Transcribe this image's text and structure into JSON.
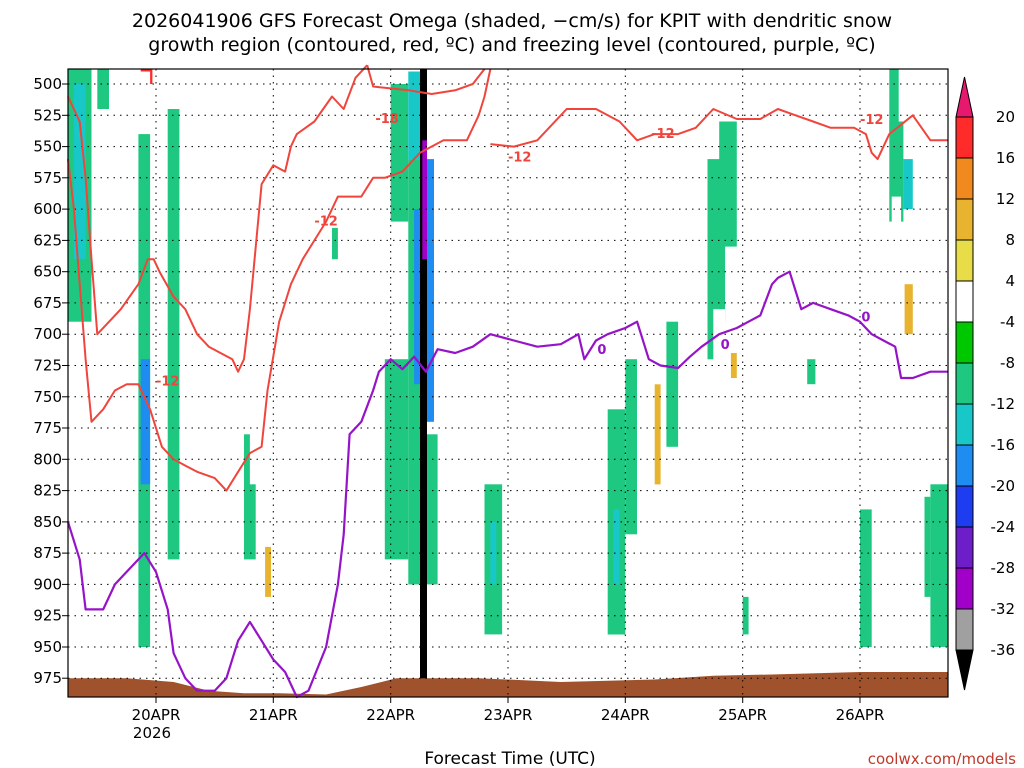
{
  "header": {
    "title_line1": "2026041906 GFS Forecast Omega (shaded, −cm/s) for KPIT with dendritic snow",
    "title_line2": "growth region (contoured, red, ºC) and freezing level (contoured, purple, ºC)"
  },
  "footer": {
    "xlabel": "Forecast Time (UTC)",
    "credit": "coolwx.com/models",
    "year_label": "2026"
  },
  "chart_data": {
    "type": "heatmap",
    "title": "2026041906 GFS Forecast Omega (shaded, −cm/s) for KPIT with dendritic snow growth region (contoured, red, ºC) and freezing level (contoured, purple, ºC)",
    "xlabel": "Forecast Time (UTC)",
    "ylabel": "",
    "x_range_days": [
      0,
      7.5
    ],
    "y_range_hpa": [
      488,
      990
    ],
    "x_ticks": [
      {
        "day": 0.75,
        "label": "20APR"
      },
      {
        "day": 1.75,
        "label": "21APR"
      },
      {
        "day": 2.75,
        "label": "22APR"
      },
      {
        "day": 3.75,
        "label": "23APR"
      },
      {
        "day": 4.75,
        "label": "24APR"
      },
      {
        "day": 5.75,
        "label": "25APR"
      },
      {
        "day": 6.75,
        "label": "26APR"
      }
    ],
    "y_ticks": [
      500,
      525,
      550,
      575,
      600,
      625,
      650,
      675,
      700,
      725,
      750,
      775,
      800,
      825,
      850,
      875,
      900,
      925,
      950,
      975
    ],
    "colorbar": {
      "levels": [
        "20",
        "16",
        "12",
        "8",
        "4",
        "-4",
        "-8",
        "-12",
        "-16",
        "-20",
        "-24",
        "-28",
        "-32",
        "-36"
      ],
      "colors": [
        "#ff2a2a",
        "#f0891e",
        "#e8b430",
        "#e8dc48",
        "#ffffff",
        "#00c800",
        "#1fc880",
        "#18c8c8",
        "#1e8cf0",
        "#1e3cf0",
        "#6e1ec8",
        "#a000c8",
        "#a0a0a0",
        "#000000"
      ],
      "top_arrow_color": "#e6196e",
      "bottom_arrow_color": "#000000"
    },
    "snow_growth_contour_color": "#f0453c",
    "freezing_level_color": "#9614c8",
    "ground_color": "#a0522d",
    "snow_growth_upper": [
      [
        0,
        510
      ],
      [
        0.1,
        530
      ],
      [
        0.15,
        575
      ],
      [
        0.2,
        640
      ],
      [
        0.25,
        700
      ],
      [
        0.35,
        690
      ],
      [
        0.45,
        680
      ],
      [
        0.6,
        660
      ],
      [
        0.68,
        640
      ],
      [
        0.73,
        640
      ],
      [
        0.78,
        650
      ],
      [
        0.9,
        670
      ],
      [
        1.0,
        680
      ],
      [
        1.1,
        700
      ],
      [
        1.2,
        710
      ],
      [
        1.3,
        715
      ],
      [
        1.4,
        720
      ],
      [
        1.45,
        730
      ],
      [
        1.5,
        720
      ],
      [
        1.55,
        680
      ],
      [
        1.65,
        580
      ],
      [
        1.75,
        565
      ],
      [
        1.85,
        570
      ],
      [
        1.9,
        550
      ],
      [
        1.95,
        540
      ],
      [
        2.1,
        530
      ],
      [
        2.25,
        510
      ],
      [
        2.35,
        520
      ],
      [
        2.45,
        495
      ],
      [
        2.55,
        485
      ]
    ],
    "snow_growth_lower": [
      [
        0,
        560
      ],
      [
        0.05,
        600
      ],
      [
        0.1,
        660
      ],
      [
        0.15,
        720
      ],
      [
        0.2,
        770
      ],
      [
        0.3,
        760
      ],
      [
        0.4,
        745
      ],
      [
        0.5,
        740
      ],
      [
        0.6,
        740
      ],
      [
        0.7,
        760
      ],
      [
        0.8,
        790
      ],
      [
        0.9,
        800
      ],
      [
        1.0,
        805
      ],
      [
        1.1,
        810
      ],
      [
        1.25,
        815
      ],
      [
        1.35,
        825
      ],
      [
        1.45,
        810
      ],
      [
        1.55,
        795
      ],
      [
        1.65,
        790
      ],
      [
        1.7,
        745
      ],
      [
        1.8,
        690
      ],
      [
        1.9,
        660
      ],
      [
        2.0,
        640
      ],
      [
        2.1,
        625
      ],
      [
        2.2,
        610
      ],
      [
        2.3,
        590
      ],
      [
        2.5,
        590
      ],
      [
        2.6,
        575
      ],
      [
        2.7,
        575
      ],
      [
        2.85,
        570
      ],
      [
        3.0,
        555
      ],
      [
        3.2,
        545
      ],
      [
        3.4,
        545
      ],
      [
        3.5,
        525
      ],
      [
        3.55,
        510
      ],
      [
        3.6,
        488
      ]
    ],
    "snow_growth_top": [
      [
        2.55,
        485
      ],
      [
        2.6,
        502
      ],
      [
        2.9,
        505
      ],
      [
        3.1,
        508
      ],
      [
        3.3,
        505
      ],
      [
        3.45,
        500
      ],
      [
        3.55,
        488
      ]
    ],
    "snow_growth_right": [
      [
        3.6,
        548
      ],
      [
        3.8,
        550
      ],
      [
        4.0,
        545
      ],
      [
        4.25,
        520
      ],
      [
        4.5,
        520
      ],
      [
        4.7,
        530
      ],
      [
        4.85,
        545
      ],
      [
        5.0,
        540
      ],
      [
        5.2,
        540
      ],
      [
        5.35,
        535
      ],
      [
        5.5,
        520
      ],
      [
        5.7,
        528
      ],
      [
        5.9,
        528
      ],
      [
        6.05,
        520
      ],
      [
        6.2,
        525
      ],
      [
        6.35,
        530
      ],
      [
        6.5,
        535
      ],
      [
        6.7,
        535
      ],
      [
        6.8,
        540
      ],
      [
        6.85,
        555
      ],
      [
        6.9,
        560
      ],
      [
        7.0,
        540
      ],
      [
        7.2,
        525
      ],
      [
        7.35,
        545
      ],
      [
        7.5,
        545
      ]
    ],
    "freezing_level": [
      [
        0,
        850
      ],
      [
        0.1,
        880
      ],
      [
        0.15,
        920
      ],
      [
        0.3,
        920
      ],
      [
        0.4,
        900
      ],
      [
        0.55,
        885
      ],
      [
        0.65,
        875
      ],
      [
        0.75,
        890
      ],
      [
        0.85,
        920
      ],
      [
        0.9,
        955
      ],
      [
        1.0,
        975
      ],
      [
        1.1,
        985
      ],
      [
        1.25,
        985
      ],
      [
        1.35,
        975
      ],
      [
        1.45,
        945
      ],
      [
        1.55,
        930
      ],
      [
        1.65,
        945
      ],
      [
        1.75,
        960
      ],
      [
        1.85,
        970
      ],
      [
        1.95,
        990
      ],
      [
        2.05,
        985
      ],
      [
        2.2,
        950
      ],
      [
        2.3,
        900
      ],
      [
        2.35,
        860
      ],
      [
        2.4,
        780
      ],
      [
        2.5,
        770
      ],
      [
        2.6,
        745
      ],
      [
        2.65,
        730
      ],
      [
        2.75,
        720
      ],
      [
        2.85,
        728
      ],
      [
        2.95,
        718
      ],
      [
        3.05,
        730
      ],
      [
        3.15,
        712
      ],
      [
        3.3,
        715
      ],
      [
        3.45,
        710
      ],
      [
        3.6,
        700
      ],
      [
        3.8,
        705
      ],
      [
        4.0,
        710
      ],
      [
        4.2,
        708
      ],
      [
        4.35,
        700
      ],
      [
        4.4,
        720
      ],
      [
        4.5,
        705
      ],
      [
        4.6,
        700
      ],
      [
        4.75,
        695
      ],
      [
        4.85,
        690
      ],
      [
        4.95,
        720
      ],
      [
        5.05,
        725
      ],
      [
        5.2,
        727
      ],
      [
        5.3,
        718
      ],
      [
        5.4,
        710
      ],
      [
        5.55,
        700
      ],
      [
        5.7,
        695
      ],
      [
        5.8,
        690
      ],
      [
        5.9,
        685
      ],
      [
        6.0,
        660
      ],
      [
        6.05,
        655
      ],
      [
        6.15,
        650
      ],
      [
        6.25,
        680
      ],
      [
        6.35,
        675
      ],
      [
        6.5,
        680
      ],
      [
        6.65,
        685
      ],
      [
        6.75,
        690
      ],
      [
        6.85,
        700
      ],
      [
        6.95,
        705
      ],
      [
        7.05,
        710
      ],
      [
        7.1,
        735
      ],
      [
        7.2,
        735
      ],
      [
        7.35,
        730
      ],
      [
        7.5,
        730
      ]
    ],
    "contour_labels": [
      {
        "day": 2.72,
        "hpa": 527,
        "text": "-18",
        "color": "#f0453c"
      },
      {
        "day": 3.85,
        "hpa": 558,
        "text": "-12",
        "color": "#f0453c"
      },
      {
        "day": 2.2,
        "hpa": 609,
        "text": "-12",
        "color": "#f0453c"
      },
      {
        "day": 0.85,
        "hpa": 737,
        "text": "-12",
        "color": "#f0453c"
      },
      {
        "day": 5.07,
        "hpa": 539,
        "text": "-12",
        "color": "#f0453c"
      },
      {
        "day": 6.85,
        "hpa": 528,
        "text": "-12",
        "color": "#f0453c"
      },
      {
        "day": 4.55,
        "hpa": 712,
        "text": "0",
        "color": "#9614c8"
      },
      {
        "day": 5.6,
        "hpa": 708,
        "text": "0",
        "color": "#9614c8"
      },
      {
        "day": 6.8,
        "hpa": 686,
        "text": "0",
        "color": "#9614c8"
      }
    ],
    "omega_cells": [
      {
        "d0": 0.0,
        "d1": 0.2,
        "p0": 488,
        "p1": 690,
        "v": -8
      },
      {
        "d0": 0.05,
        "d1": 0.15,
        "p0": 500,
        "p1": 640,
        "v": -12
      },
      {
        "d0": 0.25,
        "d1": 0.35,
        "p0": 488,
        "p1": 520,
        "v": -8
      },
      {
        "d0": 0.3,
        "d1": 0.4,
        "p0": 560,
        "p1": 700,
        "v": 4
      },
      {
        "d0": 0.45,
        "d1": 0.55,
        "p0": 488,
        "p1": 560,
        "v": 4
      },
      {
        "d0": 0.4,
        "d1": 0.55,
        "p0": 820,
        "p1": 880,
        "v": 4
      },
      {
        "d0": 0.62,
        "d1": 0.72,
        "p0": 488,
        "p1": 500,
        "v": 20
      },
      {
        "d0": 0.55,
        "d1": 0.7,
        "p0": 490,
        "p1": 620,
        "v": 4
      },
      {
        "d0": 0.6,
        "d1": 0.7,
        "p0": 540,
        "p1": 950,
        "v": -8
      },
      {
        "d0": 0.62,
        "d1": 0.7,
        "p0": 720,
        "p1": 820,
        "v": -16
      },
      {
        "d0": 0.72,
        "d1": 0.85,
        "p0": 540,
        "p1": 650,
        "v": 4
      },
      {
        "d0": 0.75,
        "d1": 0.85,
        "p0": 740,
        "p1": 800,
        "v": 4
      },
      {
        "d0": 0.85,
        "d1": 0.95,
        "p0": 520,
        "p1": 880,
        "v": -8
      },
      {
        "d0": 0.98,
        "d1": 1.05,
        "p0": 490,
        "p1": 540,
        "v": 4
      },
      {
        "d0": 1.15,
        "d1": 1.25,
        "p0": 490,
        "p1": 555,
        "v": 4
      },
      {
        "d0": 1.3,
        "d1": 1.4,
        "p0": 490,
        "p1": 540,
        "v": 4
      },
      {
        "d0": 1.5,
        "d1": 1.6,
        "p0": 780,
        "p1": 880,
        "v": -8
      },
      {
        "d0": 1.55,
        "d1": 1.65,
        "p0": 730,
        "p1": 820,
        "v": 4
      },
      {
        "d0": 1.65,
        "d1": 1.75,
        "p0": 840,
        "p1": 940,
        "v": 4
      },
      {
        "d0": 1.68,
        "d1": 1.73,
        "p0": 870,
        "p1": 910,
        "v": 12
      },
      {
        "d0": 1.75,
        "d1": 1.85,
        "p0": 840,
        "p1": 920,
        "v": 4
      },
      {
        "d0": 2.25,
        "d1": 2.3,
        "p0": 615,
        "p1": 640,
        "v": -8
      },
      {
        "d0": 2.75,
        "d1": 2.9,
        "p0": 500,
        "p1": 610,
        "v": -8
      },
      {
        "d0": 2.7,
        "d1": 2.9,
        "p0": 720,
        "p1": 880,
        "v": -8
      },
      {
        "d0": 2.9,
        "d1": 3.0,
        "p0": 490,
        "p1": 560,
        "v": -12
      },
      {
        "d0": 2.9,
        "d1": 3.05,
        "p0": 560,
        "p1": 900,
        "v": -8
      },
      {
        "d0": 2.95,
        "d1": 3.05,
        "p0": 600,
        "p1": 740,
        "v": -16
      },
      {
        "d0": 3.0,
        "d1": 3.06,
        "p0": 488,
        "p1": 980,
        "v": -36
      },
      {
        "d0": 3.02,
        "d1": 3.06,
        "p0": 545,
        "p1": 640,
        "v": -28
      },
      {
        "d0": 3.06,
        "d1": 3.12,
        "p0": 560,
        "p1": 770,
        "v": -16
      },
      {
        "d0": 3.06,
        "d1": 3.15,
        "p0": 780,
        "p1": 900,
        "v": -8
      },
      {
        "d0": 3.15,
        "d1": 3.25,
        "p0": 500,
        "p1": 560,
        "v": 4
      },
      {
        "d0": 3.55,
        "d1": 3.7,
        "p0": 820,
        "p1": 940,
        "v": -8
      },
      {
        "d0": 3.6,
        "d1": 3.65,
        "p0": 850,
        "p1": 900,
        "v": -12
      },
      {
        "d0": 3.85,
        "d1": 3.9,
        "p0": 488,
        "p1": 540,
        "v": 4
      },
      {
        "d0": 3.9,
        "d1": 4.0,
        "p0": 600,
        "p1": 710,
        "v": 4
      },
      {
        "d0": 4.6,
        "d1": 4.75,
        "p0": 760,
        "p1": 940,
        "v": -8
      },
      {
        "d0": 4.65,
        "d1": 4.7,
        "p0": 840,
        "p1": 900,
        "v": -12
      },
      {
        "d0": 4.75,
        "d1": 4.85,
        "p0": 720,
        "p1": 860,
        "v": -8
      },
      {
        "d0": 4.85,
        "d1": 4.92,
        "p0": 700,
        "p1": 790,
        "v": 4
      },
      {
        "d0": 4.95,
        "d1": 5.1,
        "p0": 700,
        "p1": 820,
        "v": 4
      },
      {
        "d0": 5.0,
        "d1": 5.05,
        "p0": 740,
        "p1": 820,
        "v": 12
      },
      {
        "d0": 5.1,
        "d1": 5.2,
        "p0": 690,
        "p1": 790,
        "v": -8
      },
      {
        "d0": 5.3,
        "d1": 5.45,
        "p0": 800,
        "p1": 890,
        "v": 4
      },
      {
        "d0": 5.45,
        "d1": 5.6,
        "p0": 560,
        "p1": 720,
        "v": -8
      },
      {
        "d0": 5.5,
        "d1": 5.6,
        "p0": 680,
        "p1": 940,
        "v": 4
      },
      {
        "d0": 5.55,
        "d1": 5.7,
        "p0": 530,
        "p1": 630,
        "v": -8
      },
      {
        "d0": 5.6,
        "d1": 5.75,
        "p0": 690,
        "p1": 780,
        "v": 4
      },
      {
        "d0": 5.65,
        "d1": 5.7,
        "p0": 715,
        "p1": 735,
        "v": 12
      },
      {
        "d0": 5.75,
        "d1": 5.85,
        "p0": 640,
        "p1": 700,
        "v": 4
      },
      {
        "d0": 5.75,
        "d1": 5.8,
        "p0": 910,
        "p1": 940,
        "v": -8
      },
      {
        "d0": 6.0,
        "d1": 6.1,
        "p0": 488,
        "p1": 540,
        "v": 4
      },
      {
        "d0": 6.25,
        "d1": 6.35,
        "p0": 488,
        "p1": 600,
        "v": 4
      },
      {
        "d0": 6.3,
        "d1": 6.37,
        "p0": 720,
        "p1": 740,
        "v": -8
      },
      {
        "d0": 6.75,
        "d1": 6.85,
        "p0": 840,
        "p1": 950,
        "v": -8
      },
      {
        "d0": 6.85,
        "d1": 6.95,
        "p0": 510,
        "p1": 620,
        "v": 4
      },
      {
        "d0": 6.8,
        "d1": 6.9,
        "p0": 620,
        "p1": 770,
        "v": 4
      },
      {
        "d0": 7.0,
        "d1": 7.08,
        "p0": 488,
        "p1": 540,
        "v": -8
      },
      {
        "d0": 7.0,
        "d1": 7.12,
        "p0": 530,
        "p1": 610,
        "v": -8
      },
      {
        "d0": 7.02,
        "d1": 7.1,
        "p0": 590,
        "p1": 780,
        "v": 4
      },
      {
        "d0": 7.12,
        "d1": 7.2,
        "p0": 560,
        "p1": 600,
        "v": -12
      },
      {
        "d0": 7.1,
        "d1": 7.2,
        "p0": 620,
        "p1": 820,
        "v": 4
      },
      {
        "d0": 7.13,
        "d1": 7.2,
        "p0": 660,
        "p1": 700,
        "v": 12
      },
      {
        "d0": 7.3,
        "d1": 7.4,
        "p0": 488,
        "p1": 540,
        "v": 4
      },
      {
        "d0": 7.35,
        "d1": 7.5,
        "p0": 820,
        "p1": 950,
        "v": -8
      },
      {
        "d0": 7.3,
        "d1": 7.35,
        "p0": 830,
        "p1": 910,
        "v": -8
      }
    ],
    "ground_profile": [
      [
        0,
        975
      ],
      [
        0.5,
        975
      ],
      [
        0.9,
        978
      ],
      [
        1.2,
        985
      ],
      [
        1.5,
        987
      ],
      [
        1.8,
        987
      ],
      [
        2.2,
        988
      ],
      [
        2.5,
        982
      ],
      [
        2.8,
        975
      ],
      [
        3.5,
        975
      ],
      [
        4.2,
        978
      ],
      [
        5.0,
        976
      ],
      [
        5.5,
        973
      ],
      [
        6.0,
        972
      ],
      [
        6.75,
        970
      ],
      [
        7.5,
        970
      ]
    ]
  }
}
